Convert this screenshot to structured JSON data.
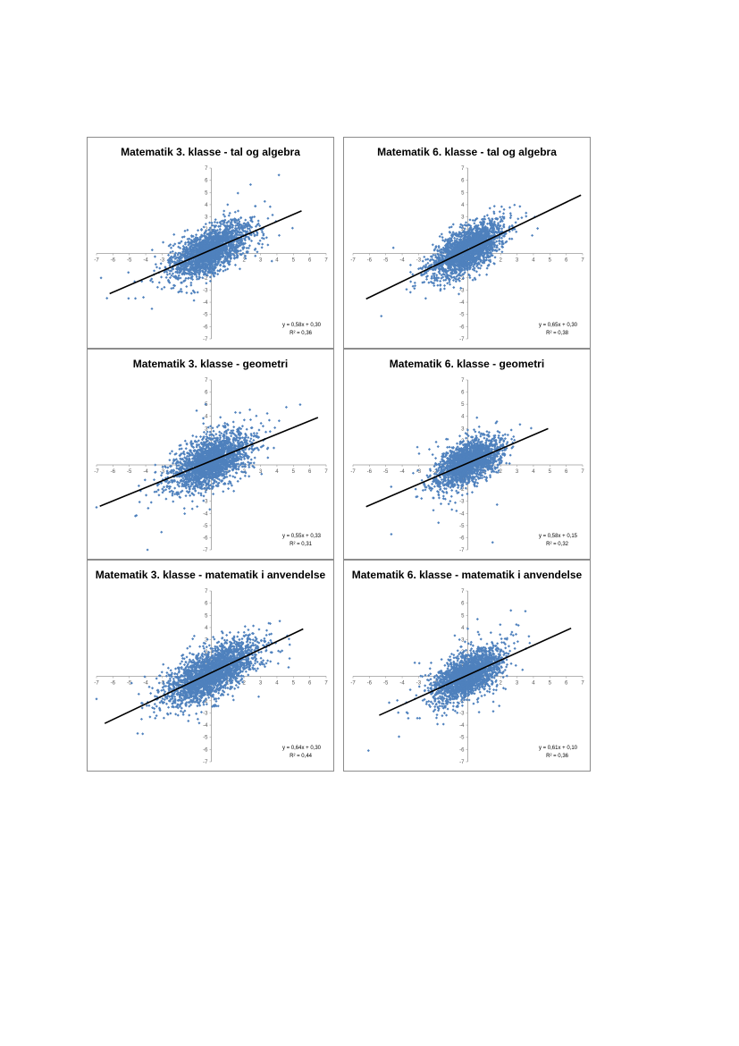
{
  "chart_data": [
    {
      "type": "scatter",
      "title": "Matematik 3. klasse - tal og algebra",
      "xlim": [
        -7,
        7
      ],
      "ylim": [
        -7,
        7
      ],
      "xticks": [
        -7,
        -6,
        -5,
        -4,
        -3,
        -2,
        -1,
        0,
        1,
        2,
        3,
        4,
        5,
        6,
        7
      ],
      "yticks": [
        -7,
        -6,
        -5,
        -4,
        -3,
        -2,
        -1,
        0,
        1,
        2,
        3,
        4,
        5,
        6,
        7
      ],
      "trendline": {
        "slope": 0.58,
        "intercept": 0.3,
        "x_range": [
          -6.2,
          5.5
        ]
      },
      "equation": "y = 0,58x + 0,30",
      "r2": "R² = 0,36",
      "cloud": {
        "n": 2200,
        "sx": 1.15,
        "corr": 0.6
      },
      "series_color": "#4f81bd",
      "grid": false,
      "legend": "none"
    },
    {
      "type": "scatter",
      "title": "Matematik 6. klasse - tal og algebra",
      "xlim": [
        -7,
        7
      ],
      "ylim": [
        -7,
        7
      ],
      "xticks": [
        -7,
        -6,
        -5,
        -4,
        -3,
        -2,
        -1,
        0,
        1,
        2,
        3,
        4,
        5,
        6,
        7
      ],
      "yticks": [
        -7,
        -6,
        -5,
        -4,
        -3,
        -2,
        -1,
        0,
        1,
        2,
        3,
        4,
        5,
        6,
        7
      ],
      "trendline": {
        "slope": 0.65,
        "intercept": 0.3,
        "x_range": [
          -6.2,
          6.9
        ]
      },
      "equation": "y = 0,65x + 0,30",
      "r2": "R² = 0,38",
      "cloud": {
        "n": 2200,
        "sx": 1.05,
        "corr": 0.62
      },
      "series_color": "#4f81bd",
      "grid": false,
      "legend": "none"
    },
    {
      "type": "scatter",
      "title": "Matematik 3. klasse - geometri",
      "xlim": [
        -7,
        7
      ],
      "ylim": [
        -7,
        7
      ],
      "xticks": [
        -7,
        -6,
        -5,
        -4,
        -3,
        -2,
        -1,
        0,
        1,
        2,
        3,
        4,
        5,
        6,
        7
      ],
      "yticks": [
        -7,
        -6,
        -5,
        -4,
        -3,
        -2,
        -1,
        0,
        1,
        2,
        3,
        4,
        5,
        6,
        7
      ],
      "trendline": {
        "slope": 0.55,
        "intercept": 0.33,
        "x_range": [
          -6.8,
          6.5
        ]
      },
      "equation": "y = 0,55x + 0,33",
      "r2": "R² = 0,31",
      "cloud": {
        "n": 2200,
        "sx": 1.2,
        "corr": 0.56
      },
      "series_color": "#4f81bd",
      "grid": false,
      "legend": "none"
    },
    {
      "type": "scatter",
      "title": "Matematik 6. klasse - geometri",
      "xlim": [
        -7,
        7
      ],
      "ylim": [
        -7,
        7
      ],
      "xticks": [
        -7,
        -6,
        -5,
        -4,
        -3,
        -2,
        -1,
        0,
        1,
        2,
        3,
        4,
        5,
        6,
        7
      ],
      "yticks": [
        -7,
        -6,
        -5,
        -4,
        -3,
        -2,
        -1,
        0,
        1,
        2,
        3,
        4,
        5,
        6,
        7
      ],
      "trendline": {
        "slope": 0.58,
        "intercept": 0.15,
        "x_range": [
          -6.2,
          4.9
        ]
      },
      "equation": "y = 0,58x + 0,15",
      "r2": "R² = 0,32",
      "cloud": {
        "n": 2000,
        "sx": 1.0,
        "corr": 0.57
      },
      "series_color": "#4f81bd",
      "grid": false,
      "legend": "none"
    },
    {
      "type": "scatter",
      "title": "Matematik 3. klasse - matematik i anvendelse",
      "xlim": [
        -7,
        7
      ],
      "ylim": [
        -7,
        7
      ],
      "xticks": [
        -7,
        -6,
        -5,
        -4,
        -3,
        -2,
        -1,
        0,
        1,
        2,
        3,
        4,
        5,
        6,
        7
      ],
      "yticks": [
        -7,
        -6,
        -5,
        -4,
        -3,
        -2,
        -1,
        0,
        1,
        2,
        3,
        4,
        5,
        6,
        7
      ],
      "trendline": {
        "slope": 0.64,
        "intercept": 0.3,
        "x_range": [
          -6.5,
          5.6
        ]
      },
      "equation": "y = 0,64x + 0,30",
      "r2": "R² = 0,44",
      "cloud": {
        "n": 2600,
        "sx": 1.3,
        "corr": 0.67
      },
      "series_color": "#4f81bd",
      "grid": false,
      "legend": "none"
    },
    {
      "type": "scatter",
      "title": "Matematik 6. klasse - matematik i anvendelse",
      "xlim": [
        -7,
        7
      ],
      "ylim": [
        -7,
        7
      ],
      "xticks": [
        -7,
        -6,
        -5,
        -4,
        -3,
        -2,
        -1,
        0,
        1,
        2,
        3,
        4,
        5,
        6,
        7
      ],
      "yticks": [
        -7,
        -6,
        -5,
        -4,
        -3,
        -2,
        -1,
        0,
        1,
        2,
        3,
        4,
        5,
        6,
        7
      ],
      "trendline": {
        "slope": 0.61,
        "intercept": 0.1,
        "x_range": [
          -5.4,
          6.3
        ]
      },
      "equation": "y = 0,61x + 0,10",
      "r2": "R² = 0,36",
      "cloud": {
        "n": 2200,
        "sx": 1.05,
        "corr": 0.6
      },
      "series_color": "#4f81bd",
      "grid": false,
      "legend": "none"
    }
  ]
}
